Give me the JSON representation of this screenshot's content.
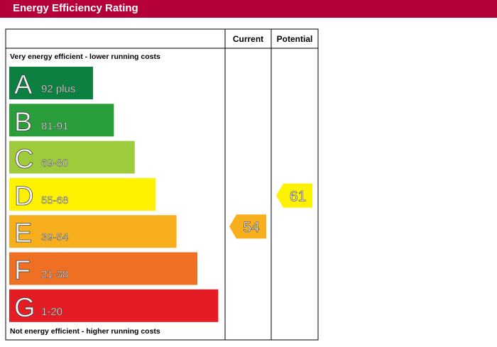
{
  "header": {
    "title": "Energy Efficiency Rating"
  },
  "chart_data": {
    "type": "bar",
    "columns": {
      "current": "Current",
      "potential": "Potential"
    },
    "top_note": "Very energy efficient - lower running costs",
    "bottom_note": "Not energy efficient - higher running costs",
    "bands": [
      {
        "letter": "A",
        "range": "92 plus",
        "color": "#0c8040"
      },
      {
        "letter": "B",
        "range": "81-91",
        "color": "#2a9e3b"
      },
      {
        "letter": "C",
        "range": "69-80",
        "color": "#9dcb3c"
      },
      {
        "letter": "D",
        "range": "55-68",
        "color": "#fff200"
      },
      {
        "letter": "E",
        "range": "39-54",
        "color": "#f7af1d"
      },
      {
        "letter": "F",
        "range": "21-38",
        "color": "#ef6f23"
      },
      {
        "letter": "G",
        "range": "1-20",
        "color": "#e31d23"
      }
    ],
    "current": {
      "value": 54,
      "band": "E",
      "color": "#f7af1d"
    },
    "potential": {
      "value": 61,
      "band": "D",
      "color": "#fff200"
    }
  }
}
